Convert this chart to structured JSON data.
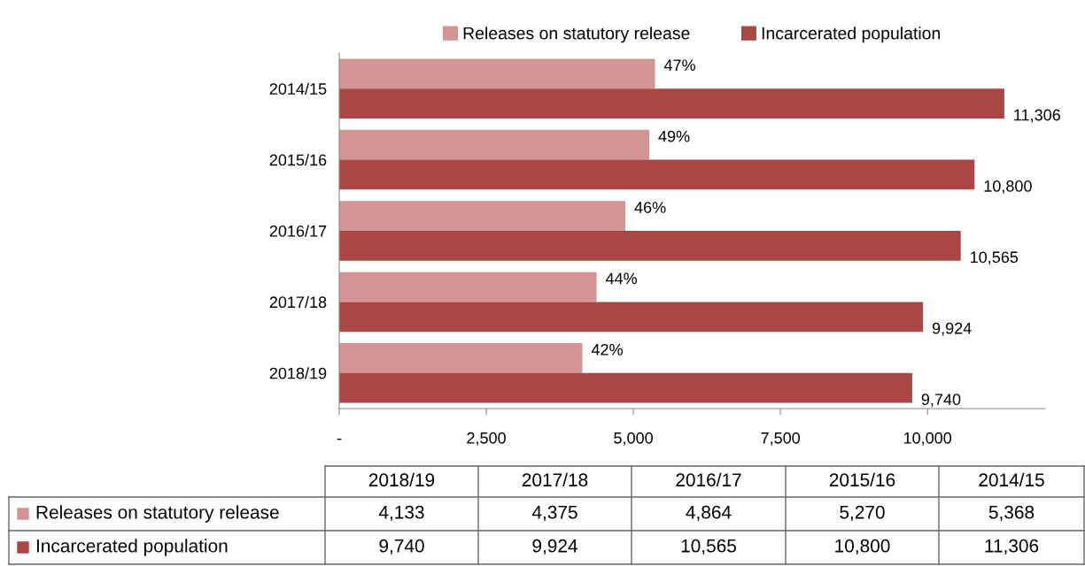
{
  "chart_data": {
    "type": "bar",
    "orientation": "horizontal",
    "categories": [
      "2014/15",
      "2015/16",
      "2016/17",
      "2017/18",
      "2018/19"
    ],
    "series": [
      {
        "name": "Releases on statutory release",
        "color": "#d39494",
        "values": [
          5368,
          5270,
          4864,
          4375,
          4133
        ]
      },
      {
        "name": "Incarcerated population",
        "color": "#aa4644",
        "values": [
          11306,
          10800,
          10565,
          9924,
          9740
        ],
        "value_labels": [
          "11,306",
          "10,800",
          "10,565",
          "9,924",
          "9,740"
        ]
      }
    ],
    "xlim": [
      0,
      12000
    ],
    "xticks": [
      {
        "value": 0,
        "label": "-"
      },
      {
        "value": 2500,
        "label": "2,500"
      },
      {
        "value": 5000,
        "label": "5,000"
      },
      {
        "value": 7500,
        "label": "7,500"
      },
      {
        "value": 10000,
        "label": "10,000"
      }
    ],
    "annotations": [
      {
        "text": "47%",
        "x": 5368,
        "y": "2014/15"
      },
      {
        "text": "49%",
        "x": 5270,
        "y": "2015/16"
      },
      {
        "text": "46%",
        "x": 4864,
        "y": "2016/17"
      },
      {
        "text": "44%",
        "x": 4375,
        "y": "2017/18"
      },
      {
        "text": "42%",
        "x": 4133,
        "y": "2018/19"
      },
      "4,133",
      "4,375",
      "4,864",
      "5,270",
      "5,368",
      "9,740",
      "9,924",
      "10,565",
      "10,800",
      "11,306"
    ],
    "grid": false,
    "legend": "top"
  }
}
